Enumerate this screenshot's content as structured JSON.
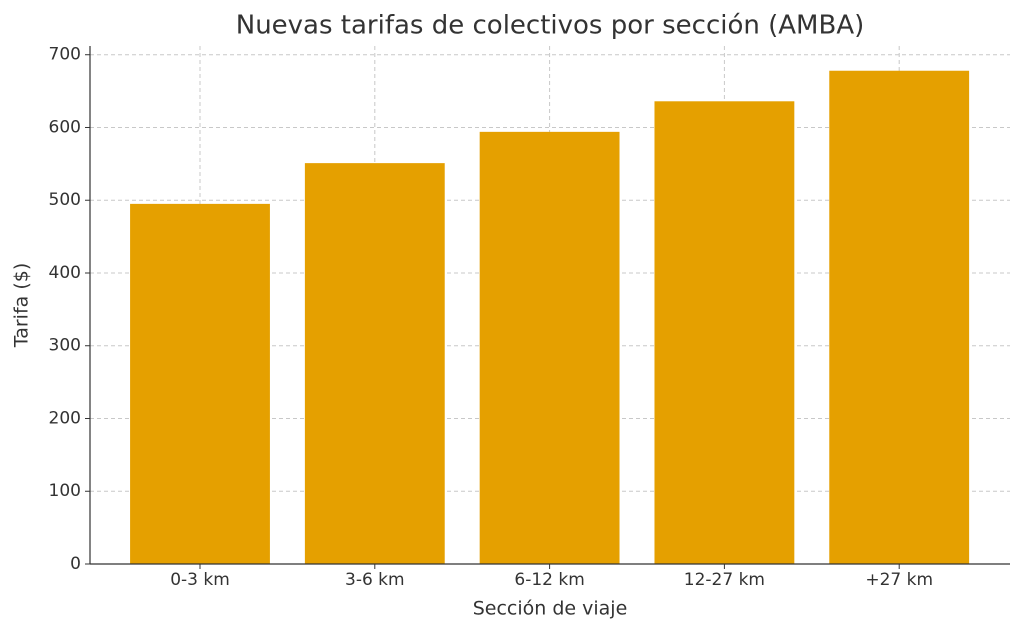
{
  "chart_data": {
    "type": "bar",
    "title": "Nuevas tarifas de colectivos por sección (AMBA)",
    "xlabel": "Sección de viaje",
    "ylabel": "Tarifa ($)",
    "categories": [
      "0-3 km",
      "3-6 km",
      "6-12 km",
      "12-27 km",
      "+27 km"
    ],
    "values": [
      495,
      551,
      594,
      636,
      678
    ],
    "color": "#e5a000",
    "ylim": [
      0,
      712
    ],
    "yticks": [
      0,
      100,
      200,
      300,
      400,
      500,
      600,
      700
    ],
    "grid": true
  }
}
